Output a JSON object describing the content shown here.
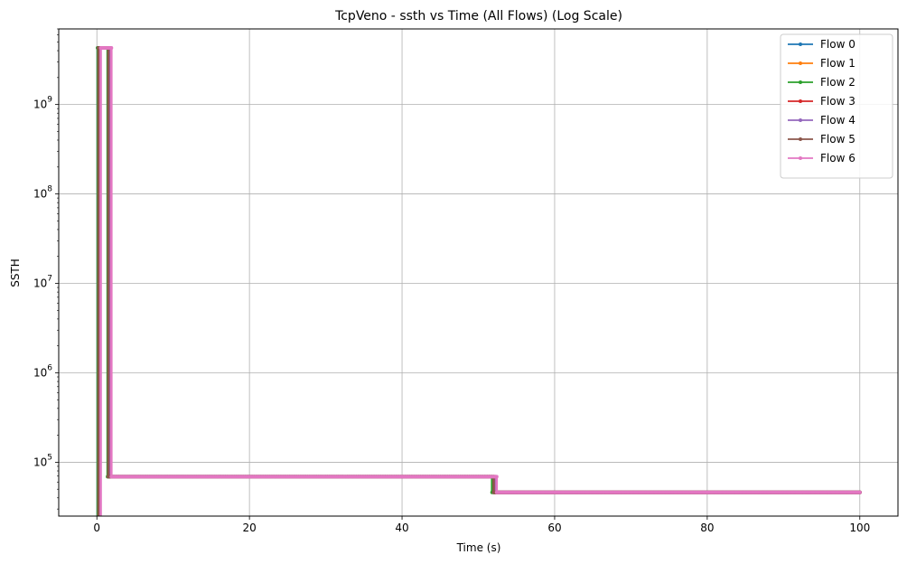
{
  "chart_data": {
    "type": "line",
    "title": "TcpVeno - ssth vs Time (All Flows) (Log Scale)",
    "xlabel": "Time (s)",
    "ylabel": "SSTH",
    "xlim": [
      -5,
      105
    ],
    "ylim": [
      25000,
      7000000000
    ],
    "yscale": "log",
    "grid": true,
    "legend_position": "top-right",
    "x_ticks": [
      0,
      20,
      40,
      60,
      80,
      100
    ],
    "x_tick_labels": [
      "0",
      "20",
      "40",
      "60",
      "80",
      "100"
    ],
    "y_ticks": [
      100000,
      1000000,
      10000000,
      100000000,
      1000000000
    ],
    "y_tick_labels": [
      {
        "base": "10",
        "exp": "5"
      },
      {
        "base": "10",
        "exp": "6"
      },
      {
        "base": "10",
        "exp": "7"
      },
      {
        "base": "10",
        "exp": "8"
      },
      {
        "base": "10",
        "exp": "9"
      }
    ],
    "series": [
      {
        "name": "Flow 0",
        "color": "#1f77b4",
        "x": [
          0.1,
          0.1,
          1.5,
          1.5,
          52.0,
          52.0,
          100.0
        ],
        "y": [
          25000,
          4290000000,
          4290000000,
          69000,
          69000,
          46000,
          46000
        ]
      },
      {
        "name": "Flow 1",
        "color": "#ff7f0e",
        "x": [
          0.2,
          0.2,
          1.6,
          1.6,
          52.1,
          52.1,
          100.0
        ],
        "y": [
          25000,
          4290000000,
          4290000000,
          69000,
          69000,
          46000,
          46000
        ]
      },
      {
        "name": "Flow 2",
        "color": "#2ca02c",
        "x": [
          0.1,
          0.1,
          1.4,
          1.4,
          51.8,
          51.8,
          100.0
        ],
        "y": [
          25000,
          4290000000,
          4290000000,
          69000,
          69000,
          46000,
          46000
        ]
      },
      {
        "name": "Flow 3",
        "color": "#d62728",
        "x": [
          0.3,
          0.3,
          1.7,
          1.7,
          52.2,
          52.2,
          100.0
        ],
        "y": [
          25000,
          4290000000,
          4290000000,
          69000,
          69000,
          46000,
          46000
        ]
      },
      {
        "name": "Flow 4",
        "color": "#9467bd",
        "x": [
          0.4,
          0.4,
          1.8,
          1.8,
          52.3,
          52.3,
          100.0
        ],
        "y": [
          25000,
          4290000000,
          4290000000,
          69000,
          69000,
          46000,
          46000
        ]
      },
      {
        "name": "Flow 5",
        "color": "#8c564b",
        "x": [
          0.2,
          0.2,
          1.5,
          1.5,
          52.0,
          52.0,
          100.0
        ],
        "y": [
          25000,
          4290000000,
          4290000000,
          69000,
          69000,
          46000,
          46000
        ]
      },
      {
        "name": "Flow 6",
        "color": "#e377c2",
        "x": [
          0.5,
          0.5,
          1.9,
          1.9,
          52.4,
          52.4,
          100.0
        ],
        "y": [
          25000,
          4290000000,
          4290000000,
          69000,
          69000,
          46000,
          46000
        ]
      }
    ]
  }
}
